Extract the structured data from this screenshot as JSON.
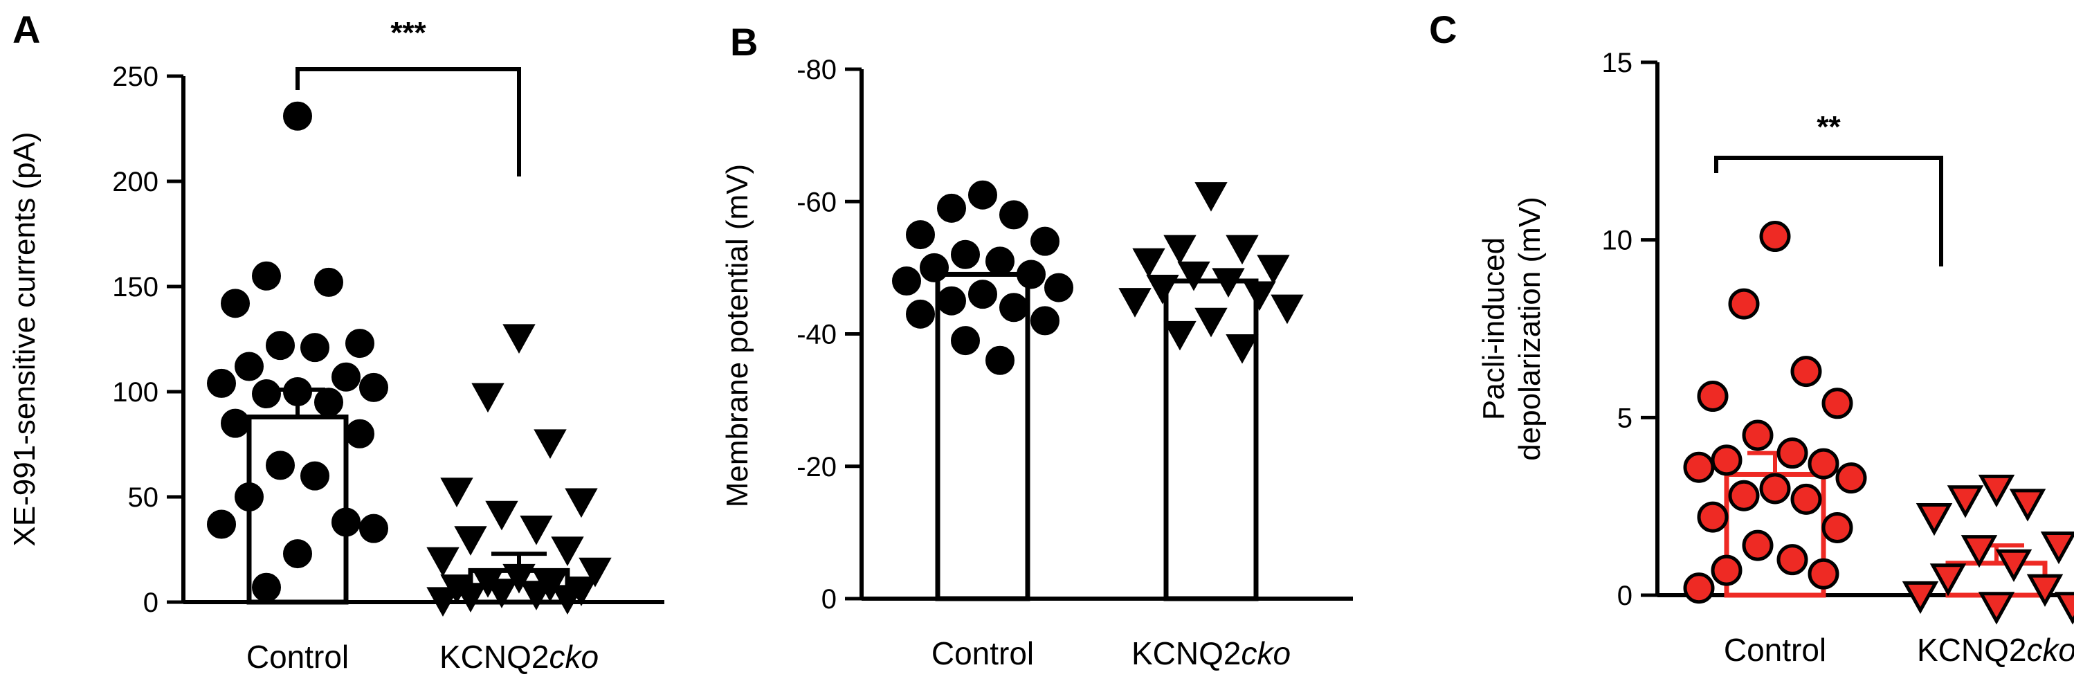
{
  "chart_data": [
    {
      "panel": "A",
      "type": "bar",
      "ylabel": "XE-991-sensitive currents (pA)",
      "ylim": [
        0,
        250
      ],
      "yticks": [
        "0",
        "50",
        "100",
        "150",
        "200",
        "250"
      ],
      "categories": [
        {
          "prefix": "Control",
          "italic": ""
        },
        {
          "prefix": "KCNQ2",
          "italic": "cko"
        }
      ],
      "series": [
        {
          "values": [
            88,
            15
          ]
        }
      ],
      "error": [
        [
          null,
          13
        ],
        [
          null,
          8
        ]
      ],
      "bar_color": "#000000",
      "significance": "***",
      "points": [
        {
          "marker": "circle",
          "fill": "#000000",
          "stroke": "#000000",
          "values": [
            231,
            155,
            152,
            142,
            123,
            122,
            121,
            112,
            107,
            104,
            102,
            100,
            99,
            95,
            85,
            80,
            65,
            60,
            50,
            38,
            37,
            35,
            23,
            7
          ]
        },
        {
          "marker": "triangle",
          "fill": "#000000",
          "stroke": "#000000",
          "values": [
            126,
            98,
            76,
            53,
            48,
            42,
            35,
            30,
            25,
            20,
            15,
            12,
            10,
            8,
            7,
            6,
            5,
            4,
            3,
            2,
            1
          ]
        }
      ]
    },
    {
      "panel": "B",
      "type": "bar",
      "ylabel": "Membrane potential (mV)",
      "ylim": [
        0,
        -80
      ],
      "yticks": [
        "0",
        "-20",
        "-40",
        "-60",
        "-80"
      ],
      "categories": [
        {
          "prefix": "Control",
          "italic": ""
        },
        {
          "prefix": "KCNQ2",
          "italic": "cko"
        }
      ],
      "series": [
        {
          "values": [
            -49,
            -48
          ]
        }
      ],
      "error": [
        [
          null,
          null
        ],
        [
          null,
          null
        ]
      ],
      "bar_color": "#000000",
      "significance": "",
      "points": [
        {
          "marker": "circle",
          "fill": "#000000",
          "stroke": "#000000",
          "values": [
            -61,
            -59,
            -58,
            -55,
            -54,
            -52,
            -51,
            -50,
            -49,
            -48,
            -47,
            -46,
            -45,
            -44,
            -43,
            -42,
            -39,
            -36
          ]
        },
        {
          "marker": "triangle",
          "fill": "#000000",
          "stroke": "#000000",
          "values": [
            -61,
            -53,
            -53,
            -51,
            -50,
            -49,
            -48,
            -47,
            -46,
            -45,
            -44,
            -42,
            -40,
            -38
          ]
        }
      ]
    },
    {
      "panel": "C",
      "type": "bar",
      "ylabel": "Pacli-induced depolarization (mV)",
      "ylabel_lines": [
        "Pacli-induced",
        "depolarization (mV)"
      ],
      "ylim": [
        0,
        15
      ],
      "yticks": [
        "0",
        "5",
        "10",
        "15"
      ],
      "categories": [
        {
          "prefix": "Control",
          "italic": ""
        },
        {
          "prefix": "KCNQ2",
          "italic": "cko"
        }
      ],
      "series": [
        {
          "values": [
            3.4,
            0.9
          ]
        }
      ],
      "error": [
        [
          null,
          0.6
        ],
        [
          null,
          0.5
        ]
      ],
      "bar_color": "#ee2a24",
      "significance": "**",
      "points": [
        {
          "marker": "circle",
          "fill": "#ee2a24",
          "stroke": "#000000",
          "values": [
            10.1,
            8.2,
            6.3,
            5.6,
            5.4,
            4.5,
            4.0,
            3.8,
            3.7,
            3.6,
            3.3,
            3.0,
            2.8,
            2.7,
            2.2,
            1.9,
            1.4,
            1.0,
            0.7,
            0.6,
            0.2
          ]
        },
        {
          "marker": "triangle",
          "fill": "#ee2a24",
          "stroke": "#000000",
          "values": [
            3.0,
            2.7,
            2.6,
            2.2,
            1.4,
            1.3,
            0.9,
            0.5,
            0.2,
            0.0,
            -0.3,
            -0.3
          ]
        }
      ]
    }
  ]
}
